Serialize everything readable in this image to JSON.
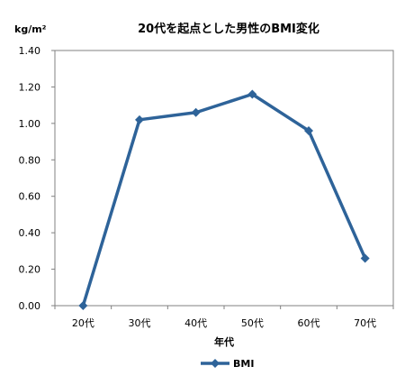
{
  "chart_data": {
    "type": "line",
    "title": "20代を起点とした男性のBMI変化",
    "ylabel": "kg/m²",
    "xlabel": "年代",
    "categories": [
      "20代",
      "30代",
      "40代",
      "50代",
      "60代",
      "70代"
    ],
    "y_tick_labels": [
      "0.00",
      "0.20",
      "0.40",
      "0.60",
      "0.80",
      "1.00",
      "1.20",
      "1.40"
    ],
    "ylim": [
      0,
      1.4
    ],
    "series": [
      {
        "name": "BMI",
        "values": [
          0.0,
          1.02,
          1.06,
          1.16,
          0.96,
          0.26
        ],
        "color": "#2e6399"
      }
    ],
    "grid": false,
    "legend_position": "bottom",
    "marker": "diamond"
  }
}
